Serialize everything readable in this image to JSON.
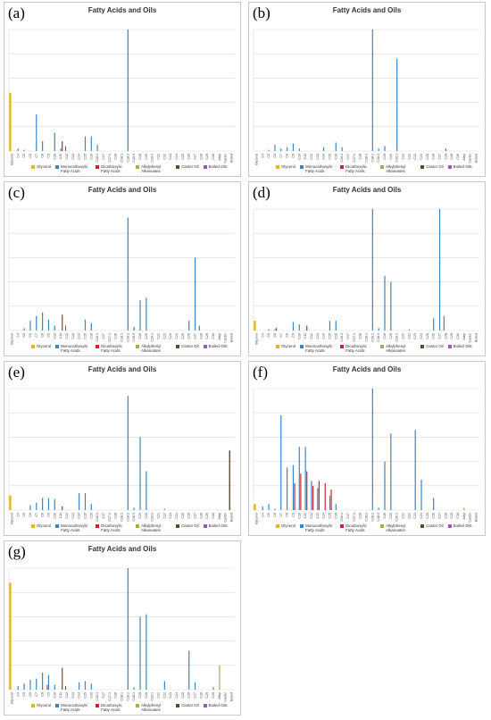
{
  "chart_title": "Fatty Acids and Oils",
  "categories": [
    "Glycerol",
    "C4",
    "C5",
    "C6",
    "C7",
    "C8",
    "C9",
    "C10",
    "C11",
    "C12",
    "C13",
    "C14",
    "C15",
    "C16",
    "C16:1",
    "C17",
    "C17:1",
    "C18",
    "C18:1",
    "C18:2",
    "C18:3",
    "C19",
    "C20",
    "C20:1",
    "C21",
    "C22",
    "C23",
    "C24",
    "C25",
    "C26",
    "C27",
    "C28",
    "C29",
    "C30",
    "Alkyl",
    "Castor",
    "Boiled"
  ],
  "legend": [
    {
      "label": "Glycerol",
      "color": "#e6b622"
    },
    {
      "label": "Monocarboxylic Fatty Acids",
      "color": "#3a85c4"
    },
    {
      "label": "Dicarboxylic Fatty Acids",
      "color": "#d0222c"
    },
    {
      "label": "Alkylphenyl Alkanoates",
      "color": "#92b84a"
    },
    {
      "label": "Castor Oil",
      "color": "#5b4a2e"
    },
    {
      "label": "Boiled Oils",
      "color": "#9b59b6"
    }
  ],
  "chart_data": [
    {
      "label": "(a)",
      "type": "bar",
      "title": "Fatty Acids and Oils",
      "ylim": [
        0,
        100
      ],
      "glycerol": 48,
      "castor": 0,
      "boiled": 0,
      "alkyl": 0,
      "mono": [
        0,
        2,
        1,
        0,
        30,
        8,
        0,
        15,
        2,
        0,
        0,
        0,
        12,
        12,
        5,
        0,
        0,
        0,
        0,
        100,
        0,
        0,
        0,
        0,
        0,
        0,
        0,
        0,
        0,
        0,
        0,
        0,
        0,
        0,
        0,
        0,
        0
      ],
      "di": [
        0,
        0,
        0,
        0,
        0,
        0,
        0,
        0,
        8,
        0,
        0,
        0,
        0,
        0,
        0,
        0,
        0,
        0,
        0,
        0,
        0,
        0,
        0,
        0,
        0,
        0,
        0,
        0,
        0,
        0,
        0,
        0,
        0,
        0,
        0,
        0,
        0
      ],
      "di_small": [
        0,
        0,
        0,
        0,
        0,
        0,
        0,
        0,
        0,
        4,
        0,
        0,
        0,
        0,
        0,
        0,
        0,
        0,
        0,
        0,
        0,
        0,
        0,
        0,
        0,
        0,
        0,
        0,
        0,
        0,
        0,
        0,
        0,
        0,
        0,
        0,
        0
      ]
    },
    {
      "label": "(b)",
      "type": "bar",
      "title": "Fatty Acids and Oils",
      "ylim": [
        0,
        100
      ],
      "glycerol": 0,
      "castor": 0,
      "boiled": 0,
      "alkyl": 0,
      "mono": [
        0,
        0,
        1,
        5,
        2,
        3,
        6,
        2,
        0,
        0,
        0,
        3,
        0,
        7,
        3,
        0,
        0,
        0,
        0,
        100,
        2,
        4,
        0,
        76,
        0,
        0,
        0,
        0,
        0,
        0,
        0,
        2,
        0,
        0,
        0,
        0,
        0
      ],
      "di": [
        0,
        0,
        0,
        0,
        0,
        0,
        0,
        0,
        0,
        0,
        0,
        0,
        0,
        0,
        0,
        0,
        0,
        0,
        0,
        0,
        0,
        0,
        0,
        0,
        0,
        0,
        0,
        0,
        0,
        0,
        0,
        0,
        0,
        0,
        0,
        0,
        0
      ],
      "di_small": [
        0,
        0,
        0,
        0,
        0,
        0,
        0,
        0,
        0,
        0,
        0,
        0,
        0,
        0,
        0,
        0,
        0,
        0,
        0,
        0,
        0,
        0,
        0,
        0,
        0,
        0,
        0,
        0,
        0,
        0,
        0,
        0,
        0,
        0,
        0,
        0,
        0
      ]
    },
    {
      "label": "(c)",
      "type": "bar",
      "title": "Fatty Acids and Oils",
      "ylim": [
        0,
        100
      ],
      "glycerol": 0,
      "castor": 0,
      "boiled": 0,
      "alkyl": 0,
      "mono": [
        0,
        0,
        2,
        8,
        12,
        15,
        9,
        4,
        0,
        0,
        0,
        0,
        9,
        6,
        0,
        0,
        0,
        0,
        0,
        93,
        3,
        25,
        27,
        0,
        0,
        0,
        0,
        0,
        0,
        0,
        0,
        0,
        0,
        0,
        0,
        0,
        0
      ],
      "di": [
        0,
        0,
        0,
        0,
        0,
        0,
        0,
        0,
        13,
        0,
        0,
        0,
        0,
        0,
        0,
        0,
        0,
        0,
        0,
        0,
        0,
        0,
        0,
        0,
        0,
        0,
        0,
        0,
        0,
        0,
        0,
        0,
        0,
        0,
        0,
        0,
        0
      ],
      "di_small": [
        0,
        0,
        0,
        0,
        0,
        0,
        0,
        0,
        0,
        4,
        0,
        0,
        0,
        0,
        0,
        0,
        0,
        0,
        0,
        0,
        0,
        0,
        0,
        0,
        0,
        0,
        0,
        0,
        0,
        0,
        0,
        0,
        0,
        0,
        0,
        0,
        0
      ],
      "extra_mono": [
        {
          "x": 29.5,
          "v": 8
        },
        {
          "x": 30.5,
          "v": 60
        },
        {
          "x": 31.2,
          "v": 4
        }
      ]
    },
    {
      "label": "(d)",
      "type": "bar",
      "title": "Fatty Acids and Oils",
      "ylim": [
        0,
        100
      ],
      "glycerol": 8,
      "castor": 0,
      "boiled": 0,
      "alkyl": 0,
      "mono": [
        0,
        0,
        1,
        1,
        0,
        0,
        7,
        5,
        0,
        0,
        0,
        0,
        8,
        8,
        0,
        0,
        0,
        0,
        0,
        100,
        2,
        45,
        40,
        0,
        0,
        1,
        0,
        0,
        0,
        0,
        0,
        0,
        0,
        0,
        0,
        0,
        0
      ],
      "di": [
        0,
        0,
        0,
        2,
        0,
        0,
        0,
        0,
        4,
        0,
        0,
        0,
        0,
        0,
        0,
        0,
        0,
        0,
        0,
        0,
        0,
        0,
        0,
        0,
        0,
        0,
        0,
        0,
        0,
        0,
        0,
        0,
        0,
        0,
        0,
        0,
        0
      ],
      "di_small": [
        0,
        0,
        0,
        0,
        0,
        0,
        0,
        0,
        0,
        0,
        0,
        0,
        0,
        0,
        0,
        0,
        0,
        0,
        0,
        0,
        0,
        0,
        0,
        0,
        0,
        0,
        0,
        0,
        0,
        0,
        0,
        0,
        0,
        0,
        0,
        0,
        0
      ],
      "extra_mono": [
        {
          "x": 29.5,
          "v": 10
        },
        {
          "x": 30.5,
          "v": 100
        },
        {
          "x": 31.2,
          "v": 12
        }
      ]
    },
    {
      "label": "(e)",
      "type": "bar",
      "title": "Fatty Acids and Oils",
      "ylim": [
        0,
        100
      ],
      "glycerol": 12,
      "castor": 49,
      "boiled": 0,
      "alkyl": 0,
      "mono": [
        0,
        0,
        0,
        4,
        6,
        10,
        10,
        9,
        0,
        0,
        0,
        14,
        14,
        5,
        0,
        0,
        0,
        0,
        0,
        94,
        2,
        60,
        32,
        0,
        0,
        1,
        0,
        0,
        0,
        0,
        0,
        0,
        0,
        0,
        0,
        0,
        0
      ],
      "di": [
        0,
        0,
        0,
        0,
        0,
        0,
        0,
        0,
        3,
        0,
        0,
        0,
        0,
        0,
        0,
        0,
        0,
        0,
        0,
        0,
        0,
        0,
        0,
        0,
        0,
        0,
        0,
        0,
        0,
        0,
        0,
        0,
        0,
        0,
        0,
        0,
        0
      ],
      "di_small": [
        0,
        0,
        0,
        0,
        0,
        0,
        0,
        0,
        0,
        0,
        0,
        0,
        0,
        0,
        0,
        0,
        0,
        0,
        0,
        0,
        0,
        0,
        0,
        0,
        0,
        0,
        0,
        0,
        0,
        0,
        0,
        0,
        0,
        0,
        0,
        0,
        0
      ]
    },
    {
      "label": "(f)",
      "type": "bar",
      "title": "Fatty Acids and Oils",
      "ylim": [
        0,
        100
      ],
      "glycerol": 5,
      "castor": 0,
      "boiled": 0,
      "alkyl": 2,
      "mono": [
        0,
        3,
        5,
        1,
        78,
        35,
        37,
        52,
        52,
        24,
        18,
        0,
        12,
        5,
        0,
        0,
        0,
        0,
        0,
        100,
        2,
        40,
        63,
        0,
        0,
        0,
        66,
        25,
        0,
        10,
        0,
        0,
        0,
        0,
        0,
        0,
        0
      ],
      "di": [
        0,
        0,
        0,
        0,
        0,
        0,
        22,
        30,
        32,
        20,
        24,
        22,
        17,
        0,
        0,
        0,
        0,
        0,
        0,
        0,
        0,
        0,
        0,
        0,
        0,
        0,
        0,
        0,
        0,
        0,
        0,
        0,
        0,
        0,
        0,
        0,
        0
      ],
      "di_small": [
        0,
        0,
        0,
        0,
        0,
        0,
        0,
        0,
        0,
        0,
        0,
        0,
        0,
        0,
        0,
        0,
        0,
        0,
        0,
        0,
        0,
        0,
        0,
        0,
        0,
        0,
        0,
        0,
        0,
        0,
        0,
        0,
        0,
        0,
        0,
        0,
        0
      ]
    },
    {
      "label": "(g)",
      "type": "bar",
      "title": "Fatty Acids and Oils",
      "ylim": [
        0,
        100
      ],
      "glycerol": 88,
      "castor": 0,
      "boiled": 0,
      "alkyl": 20,
      "mono": [
        0,
        3,
        5,
        8,
        9,
        14,
        12,
        4,
        0,
        0,
        0,
        6,
        7,
        5,
        0,
        0,
        0,
        0,
        0,
        100,
        2,
        60,
        62,
        0,
        0,
        7,
        0,
        0,
        0,
        32,
        6,
        0,
        0,
        2,
        0,
        0,
        0
      ],
      "di": [
        0,
        0,
        0,
        0,
        0,
        0,
        0,
        0,
        18,
        0,
        0,
        0,
        0,
        0,
        0,
        0,
        0,
        0,
        0,
        0,
        0,
        0,
        0,
        0,
        0,
        0,
        0,
        0,
        0,
        0,
        0,
        0,
        0,
        0,
        0,
        0,
        0
      ],
      "di_small": [
        0,
        0,
        0,
        0,
        0,
        0,
        4,
        0,
        0,
        3,
        0,
        0,
        0,
        0,
        0,
        0,
        0,
        0,
        0,
        0,
        0,
        0,
        0,
        0,
        0,
        0,
        0,
        0,
        0,
        0,
        0,
        0,
        0,
        0,
        0,
        0,
        0
      ]
    }
  ]
}
